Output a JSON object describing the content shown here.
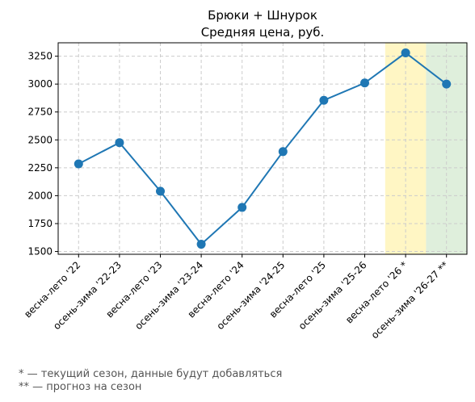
{
  "chart_data": {
    "type": "line",
    "title": "Брюки + Шнурок",
    "subtitle": "Средняя цена, руб.",
    "xlabel": "",
    "ylabel": "",
    "categories": [
      "весна-лето '22",
      "осень-зима '22-23",
      "весна-лето '23",
      "осень-зима '23-24",
      "весна-лето '24",
      "осень-зима '24-25",
      "весна-лето '25",
      "осень-зима '25-26",
      "весна-лето '26 *",
      "осень-зима '26-27 **"
    ],
    "series": [
      {
        "values": [
          2285,
          2475,
          2040,
          1565,
          1895,
          2395,
          2855,
          3010,
          3280,
          3000
        ],
        "color": "#1f77b4"
      }
    ],
    "ylim": [
      1475,
      3370
    ],
    "yticks": [
      1500,
      1750,
      2000,
      2250,
      2500,
      2750,
      3000,
      3250
    ],
    "grid": true,
    "highlight_bands": [
      {
        "category": "весна-лето '26 *",
        "color": "#fff3b0",
        "meaning": "current season"
      },
      {
        "category": "осень-зима '26-27 **",
        "color": "#d4ead0",
        "meaning": "forecast"
      }
    ]
  },
  "footnotes": {
    "current": "* — текущий сезон, данные будут добавляться",
    "forecast": "** — прогноз на сезон"
  }
}
